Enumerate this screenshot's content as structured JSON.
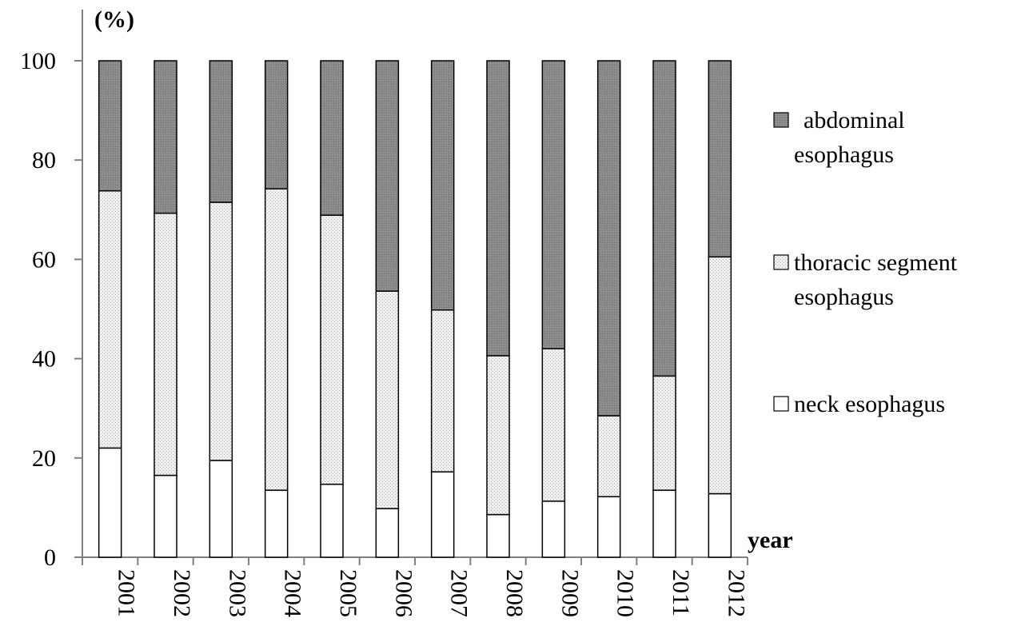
{
  "chart_data": {
    "type": "bar",
    "stacked": true,
    "title": "",
    "xlabel": "year",
    "ylabel": "(%)",
    "ylim": [
      0,
      100
    ],
    "yticks": [
      0,
      20,
      40,
      60,
      80,
      100
    ],
    "grid": false,
    "legend_position": "right",
    "categories": [
      "2001",
      "2002",
      "2003",
      "2004",
      "2005",
      "2006",
      "2007",
      "2008",
      "2009",
      "2010",
      "2011",
      "2012"
    ],
    "series": [
      {
        "name": "neck esophagus",
        "color": "#ffffff",
        "values": [
          22,
          16.5,
          19.5,
          13.5,
          14.7,
          9.8,
          17.2,
          8.6,
          11.3,
          12.2,
          13.5,
          12.8
        ]
      },
      {
        "name": "thoracic segment esophagus",
        "color": "#e6e6e6",
        "values": [
          51.8,
          52.8,
          52,
          60.7,
          54.2,
          43.8,
          32.6,
          32,
          30.7,
          16.3,
          23,
          47.7
        ]
      },
      {
        "name": "abdominal esophagus",
        "color": "#8c8c8c",
        "values": [
          26.2,
          30.7,
          28.5,
          25.8,
          31.1,
          46.4,
          50.2,
          59.4,
          58,
          71.5,
          63.5,
          39.5
        ]
      }
    ],
    "legend": [
      {
        "lines": [
          "abdominal",
          "esophagus"
        ],
        "series_index": 2
      },
      {
        "lines": [
          "thoracic segment",
          "esophagus"
        ],
        "series_index": 1
      },
      {
        "lines": [
          "neck esophagus"
        ],
        "series_index": 0
      }
    ]
  }
}
